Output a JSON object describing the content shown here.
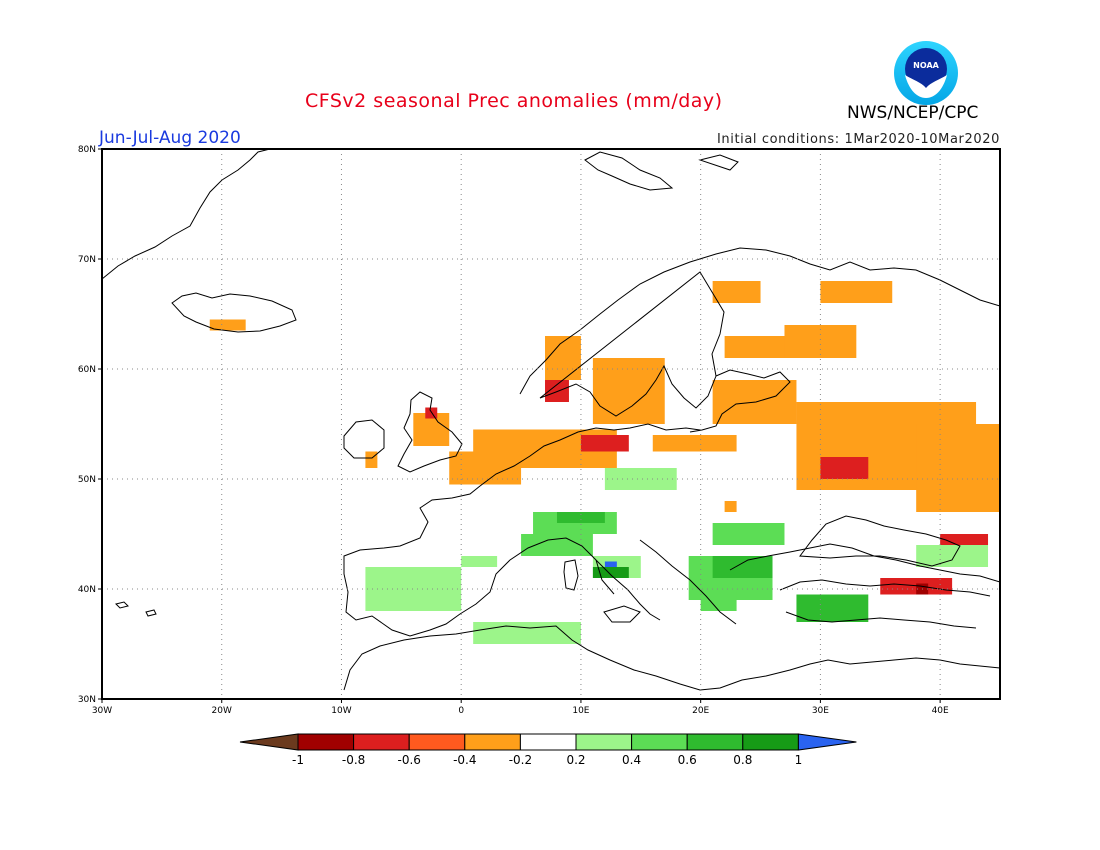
{
  "header": {
    "title": "CFSv2 seasonal Prec anomalies (mm/day)",
    "org": "NWS/NCEP/CPC",
    "season": "Jun-Jul-Aug 2020",
    "initial_conditions": "Initial conditions: 1Mar2020-10Mar2020",
    "logo_text": "NOAA",
    "logo_icon": "noaa-logo-icon"
  },
  "map": {
    "lon_labels": [
      "30W",
      "20W",
      "10W",
      "0",
      "10E",
      "20E",
      "30E",
      "40E"
    ],
    "lat_labels": [
      "30N",
      "40N",
      "50N",
      "60N",
      "70N",
      "80N"
    ],
    "lon_range": [
      -30,
      45
    ],
    "lat_range": [
      30,
      80
    ],
    "grid": "dotted"
  },
  "colorbar": {
    "unit": "mm/day",
    "labels": [
      "-1",
      "-0.8",
      "-0.6",
      "-0.4",
      "-0.2",
      "0.2",
      "0.4",
      "0.6",
      "0.8",
      "1"
    ],
    "colors": [
      "#6b3a1e",
      "#a00000",
      "#dd1f1f",
      "#ff5a1f",
      "#ff9f1a",
      "#ffffff",
      "#9cf58a",
      "#5cdd55",
      "#2fbb2f",
      "#169b16",
      "#2a63f0"
    ]
  },
  "anomaly_regions": [
    {
      "name": "iceland-west",
      "cat": "dry1",
      "lon": [
        -21,
        -18
      ],
      "lat": [
        63.5,
        64.5
      ]
    },
    {
      "name": "norway-west",
      "cat": "dry1",
      "lon": [
        7,
        10
      ],
      "lat": [
        59,
        63
      ]
    },
    {
      "name": "norway-south-dry2",
      "cat": "dry2",
      "lon": [
        7,
        9
      ],
      "lat": [
        57,
        59
      ]
    },
    {
      "name": "sweden-south",
      "cat": "dry1",
      "lon": [
        11,
        17
      ],
      "lat": [
        55,
        61
      ]
    },
    {
      "name": "north-sea-coast",
      "cat": "dry1",
      "lon": [
        1,
        13
      ],
      "lat": [
        51,
        54.5
      ]
    },
    {
      "name": "denmark-dry2",
      "cat": "dry2",
      "lon": [
        10,
        14
      ],
      "lat": [
        52.5,
        54
      ]
    },
    {
      "name": "benelux",
      "cat": "dry1",
      "lon": [
        -1,
        5
      ],
      "lat": [
        49.5,
        52.5
      ]
    },
    {
      "name": "britain-east",
      "cat": "dry1",
      "lon": [
        -4,
        -1
      ],
      "lat": [
        53,
        56
      ]
    },
    {
      "name": "britain-north-dry2",
      "cat": "dry2",
      "lon": [
        -3,
        -2
      ],
      "lat": [
        55.5,
        56.5
      ]
    },
    {
      "name": "ireland-coast",
      "cat": "dry1",
      "lon": [
        -8,
        -7
      ],
      "lat": [
        51,
        52.5
      ]
    },
    {
      "name": "poland-north",
      "cat": "dry1",
      "lon": [
        16,
        23
      ],
      "lat": [
        52.5,
        54
      ]
    },
    {
      "name": "baltics",
      "cat": "dry1",
      "lon": [
        21,
        28
      ],
      "lat": [
        55,
        59
      ]
    },
    {
      "name": "finland",
      "cat": "dry1",
      "lon": [
        22,
        30
      ],
      "lat": [
        61,
        63
      ]
    },
    {
      "name": "lapland",
      "cat": "dry1",
      "lon": [
        21,
        25
      ],
      "lat": [
        66,
        68
      ]
    },
    {
      "name": "russia-north",
      "cat": "dry1",
      "lon": [
        30,
        36
      ],
      "lat": [
        66,
        68
      ]
    },
    {
      "name": "russia-nw",
      "cat": "dry1",
      "lon": [
        27,
        33
      ],
      "lat": [
        61,
        64
      ]
    },
    {
      "name": "russia-central",
      "cat": "dry1",
      "lon": [
        28,
        43
      ],
      "lat": [
        49,
        57
      ]
    },
    {
      "name": "russia-east",
      "cat": "dry1",
      "lon": [
        38,
        45
      ],
      "lat": [
        47,
        55
      ]
    },
    {
      "name": "ukraine-dry2",
      "cat": "dry2",
      "lon": [
        30,
        34
      ],
      "lat": [
        50,
        52
      ]
    },
    {
      "name": "black-sea-east",
      "cat": "dry2",
      "lon": [
        40,
        44
      ],
      "lat": [
        44,
        45
      ]
    },
    {
      "name": "turkey-east",
      "cat": "dry2",
      "lon": [
        35,
        41
      ],
      "lat": [
        39.5,
        41
      ]
    },
    {
      "name": "turkey-east-dry3",
      "cat": "dry3",
      "lon": [
        38,
        39
      ],
      "lat": [
        39.5,
        40.5
      ]
    },
    {
      "name": "hungary-dry1",
      "cat": "dry1",
      "lon": [
        22,
        23
      ],
      "lat": [
        47,
        48
      ]
    },
    {
      "name": "alps",
      "cat": "wet2",
      "lon": [
        6,
        13
      ],
      "lat": [
        45,
        47
      ]
    },
    {
      "name": "alps-core",
      "cat": "wet3",
      "lon": [
        8,
        12
      ],
      "lat": [
        46,
        47
      ]
    },
    {
      "name": "po-valley",
      "cat": "wet2",
      "lon": [
        5,
        11
      ],
      "lat": [
        43,
        45
      ]
    },
    {
      "name": "central-italy",
      "cat": "wet1",
      "lon": [
        11,
        15
      ],
      "lat": [
        41,
        43
      ]
    },
    {
      "name": "italy-blue",
      "cat": "wet5",
      "lon": [
        12,
        13
      ],
      "lat": [
        41.5,
        42.5
      ]
    },
    {
      "name": "italy-wet4",
      "cat": "wet4",
      "lon": [
        11,
        14
      ],
      "lat": [
        41,
        42
      ]
    },
    {
      "name": "balkans",
      "cat": "wet2",
      "lon": [
        19,
        26
      ],
      "lat": [
        39,
        43
      ]
    },
    {
      "name": "balkans-core",
      "cat": "wet3",
      "lon": [
        21,
        26
      ],
      "lat": [
        41,
        43
      ]
    },
    {
      "name": "romania",
      "cat": "wet2",
      "lon": [
        21,
        27
      ],
      "lat": [
        44,
        46
      ]
    },
    {
      "name": "greece",
      "cat": "wet2",
      "lon": [
        20,
        23
      ],
      "lat": [
        38,
        40
      ]
    },
    {
      "name": "turkey-west",
      "cat": "wet3",
      "lon": [
        28,
        34
      ],
      "lat": [
        37,
        39.5
      ]
    },
    {
      "name": "spain-east",
      "cat": "wet1",
      "lon": [
        -8,
        0
      ],
      "lat": [
        38,
        42
      ]
    },
    {
      "name": "pyrenees",
      "cat": "wet1",
      "lon": [
        0,
        3
      ],
      "lat": [
        42,
        43
      ]
    },
    {
      "name": "algeria-coast",
      "cat": "wet1",
      "lon": [
        1,
        10
      ],
      "lat": [
        35,
        37
      ]
    },
    {
      "name": "france-east",
      "cat": "wet1",
      "lon": [
        12,
        18
      ],
      "lat": [
        49,
        51
      ]
    },
    {
      "name": "caucasus",
      "cat": "wet1",
      "lon": [
        38,
        44
      ],
      "lat": [
        42,
        44
      ]
    }
  ]
}
